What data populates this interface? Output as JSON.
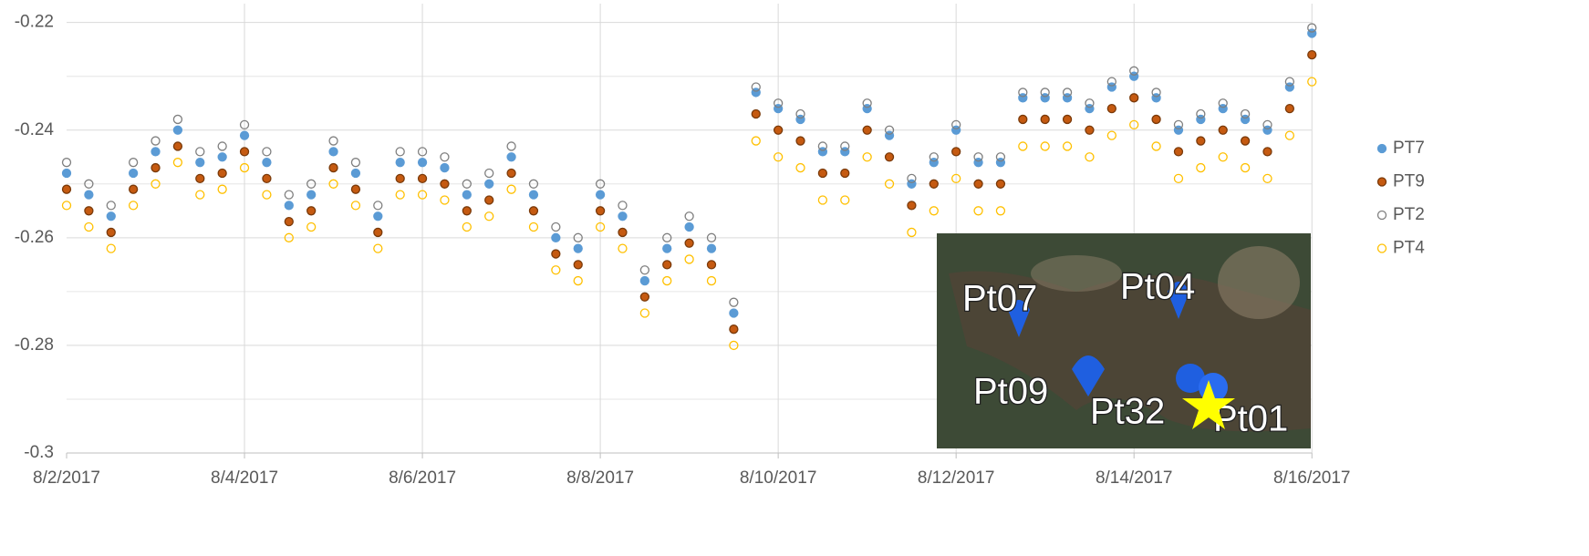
{
  "chart_data": {
    "type": "scatter",
    "x": [
      0,
      0.25,
      0.5,
      0.75,
      1,
      1.25,
      1.5,
      1.75,
      2,
      2.25,
      2.5,
      2.75,
      3,
      3.25,
      3.5,
      3.75,
      4,
      4.25,
      4.5,
      4.75,
      5,
      5.25,
      5.5,
      5.75,
      6,
      6.25,
      6.5,
      6.75,
      7,
      7.25,
      7.5,
      7.75,
      8,
      8.25,
      8.5,
      8.75,
      9,
      9.25,
      9.5,
      9.75,
      10,
      10.25,
      10.5,
      10.75,
      11,
      11.25,
      11.5,
      11.75,
      12,
      12.25,
      12.5,
      12.75,
      13,
      13.25,
      13.5,
      13.75,
      14
    ],
    "series": [
      {
        "name": "PT7",
        "color": "#5b9bd5",
        "filled": true,
        "values": [
          -0.248,
          -0.252,
          -0.256,
          -0.248,
          -0.244,
          -0.24,
          -0.246,
          -0.245,
          -0.241,
          -0.246,
          -0.254,
          -0.252,
          -0.244,
          -0.248,
          -0.256,
          -0.246,
          -0.246,
          -0.247,
          -0.252,
          -0.25,
          -0.245,
          -0.252,
          -0.26,
          -0.262,
          -0.252,
          -0.256,
          -0.268,
          -0.262,
          -0.258,
          -0.262,
          -0.274,
          -0.233,
          -0.236,
          -0.238,
          -0.244,
          -0.244,
          -0.236,
          -0.241,
          -0.25,
          -0.246,
          -0.24,
          -0.246,
          -0.246,
          -0.234,
          -0.234,
          -0.234,
          -0.236,
          -0.232,
          -0.23,
          -0.234,
          -0.24,
          -0.238,
          -0.236,
          -0.238,
          -0.24,
          -0.232,
          -0.222
        ]
      },
      {
        "name": "PT9",
        "color": "#c55a11",
        "filled": true,
        "values": [
          -0.251,
          -0.255,
          -0.259,
          -0.251,
          -0.247,
          -0.243,
          -0.249,
          -0.248,
          -0.244,
          -0.249,
          -0.257,
          -0.255,
          -0.247,
          -0.251,
          -0.259,
          -0.249,
          -0.249,
          -0.25,
          -0.255,
          -0.253,
          -0.248,
          -0.255,
          -0.263,
          -0.265,
          -0.255,
          -0.259,
          -0.271,
          -0.265,
          -0.261,
          -0.265,
          -0.277,
          -0.237,
          -0.24,
          -0.242,
          -0.248,
          -0.248,
          -0.24,
          -0.245,
          -0.254,
          -0.25,
          -0.244,
          -0.25,
          -0.25,
          -0.238,
          -0.238,
          -0.238,
          -0.24,
          -0.236,
          -0.234,
          -0.238,
          -0.244,
          -0.242,
          -0.24,
          -0.242,
          -0.244,
          -0.236,
          -0.226
        ]
      },
      {
        "name": "PT2",
        "color": "#7f7f7f",
        "filled": false,
        "values": [
          -0.246,
          -0.25,
          -0.254,
          -0.246,
          -0.242,
          -0.238,
          -0.244,
          -0.243,
          -0.239,
          -0.244,
          -0.252,
          -0.25,
          -0.242,
          -0.246,
          -0.254,
          -0.244,
          -0.244,
          -0.245,
          -0.25,
          -0.248,
          -0.243,
          -0.25,
          -0.258,
          -0.26,
          -0.25,
          -0.254,
          -0.266,
          -0.26,
          -0.256,
          -0.26,
          -0.272,
          -0.232,
          -0.235,
          -0.237,
          -0.243,
          -0.243,
          -0.235,
          -0.24,
          -0.249,
          -0.245,
          -0.239,
          -0.245,
          -0.245,
          -0.233,
          -0.233,
          -0.233,
          -0.235,
          -0.231,
          -0.229,
          -0.233,
          -0.239,
          -0.237,
          -0.235,
          -0.237,
          -0.239,
          -0.231,
          -0.221
        ]
      },
      {
        "name": "PT4",
        "color": "#ffc000",
        "filled": false,
        "values": [
          -0.254,
          -0.258,
          -0.262,
          -0.254,
          -0.25,
          -0.246,
          -0.252,
          -0.251,
          -0.247,
          -0.252,
          -0.26,
          -0.258,
          -0.25,
          -0.254,
          -0.262,
          -0.252,
          -0.252,
          -0.253,
          -0.258,
          -0.256,
          -0.251,
          -0.258,
          -0.266,
          -0.268,
          -0.258,
          -0.262,
          -0.274,
          -0.268,
          -0.264,
          -0.268,
          -0.28,
          -0.242,
          -0.245,
          -0.247,
          -0.253,
          -0.253,
          -0.245,
          -0.25,
          -0.259,
          -0.255,
          -0.249,
          -0.255,
          -0.255,
          -0.243,
          -0.243,
          -0.243,
          -0.245,
          -0.241,
          -0.239,
          -0.243,
          -0.249,
          -0.247,
          -0.245,
          -0.247,
          -0.249,
          -0.241,
          -0.231
        ]
      }
    ],
    "xlim": [
      0,
      14.5
    ],
    "xticks": [
      {
        "value": 0,
        "label": "8/2/2017"
      },
      {
        "value": 2,
        "label": "8/4/2017"
      },
      {
        "value": 4,
        "label": "8/6/2017"
      },
      {
        "value": 6,
        "label": "8/8/2017"
      },
      {
        "value": 8,
        "label": "8/10/2017"
      },
      {
        "value": 10,
        "label": "8/12/2017"
      },
      {
        "value": 12,
        "label": "8/14/2017"
      },
      {
        "value": 14,
        "label": "8/16/2017"
      }
    ],
    "ylim": [
      -0.3,
      -0.2165
    ],
    "yticks": [
      -0.3,
      -0.28,
      -0.26,
      -0.24,
      -0.22
    ],
    "yminorticks": [
      -0.29,
      -0.27,
      -0.25,
      -0.23
    ],
    "grid": true,
    "legend": "right"
  },
  "inset": {
    "labels": [
      "Pt07",
      "Pt04",
      "Pt09",
      "Pt32",
      "Pt01"
    ]
  }
}
